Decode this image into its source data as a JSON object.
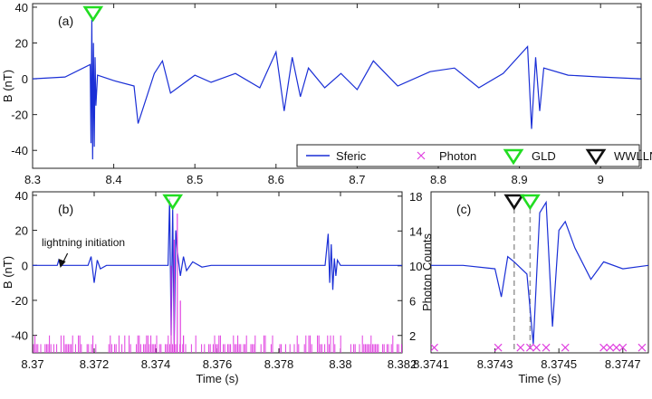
{
  "legend": {
    "items": [
      {
        "label": "Sferic",
        "marker": "line",
        "color": "#1a2fd6"
      },
      {
        "label": "Photon",
        "marker": "x",
        "color": "#e040e0"
      },
      {
        "label": "GLD",
        "marker": "triangle-down",
        "color": "#22dd22"
      },
      {
        "label": "WWLLN",
        "marker": "triangle-down",
        "color": "#111111"
      }
    ],
    "placement": "bottom-right of panel (a)"
  },
  "colors": {
    "sferic": "#1a2fd6",
    "photon": "#e040e0",
    "gld": "#22dd22",
    "wwlln": "#111111",
    "dashed": "#999999"
  },
  "chart_data": [
    {
      "panel_label": "(a)",
      "type": "line",
      "xlabel": "",
      "ylabel": "B (nT)",
      "xlim": [
        8.3,
        9.05
      ],
      "ylim": [
        -50,
        42
      ],
      "xticks": [
        "8.3",
        "8.4",
        "8.5",
        "8.6",
        "8.7",
        "8.8",
        "8.9",
        "9"
      ],
      "yticks": [
        "40",
        "20",
        "0",
        "-20",
        "-40"
      ],
      "grid": false,
      "series": [
        {
          "name": "Sferic",
          "color": "#1a2fd6",
          "x": [
            8.3,
            8.34,
            8.371,
            8.372,
            8.373,
            8.374,
            8.375,
            8.376,
            8.377,
            8.378,
            8.38,
            8.4,
            8.425,
            8.43,
            8.45,
            8.46,
            8.47,
            8.5,
            8.52,
            8.55,
            8.58,
            8.6,
            8.61,
            8.62,
            8.63,
            8.64,
            8.66,
            8.68,
            8.7,
            8.72,
            8.75,
            8.79,
            8.82,
            8.85,
            8.88,
            8.91,
            8.915,
            8.92,
            8.925,
            8.93,
            8.96,
            9.0,
            9.05
          ],
          "y": [
            0,
            1,
            8,
            -36,
            33,
            -45,
            20,
            -38,
            12,
            -15,
            2,
            -1,
            -4,
            -25,
            3,
            10,
            -8,
            2,
            -2,
            3,
            -5,
            15,
            -18,
            12,
            -10,
            6,
            -5,
            3,
            -6,
            10,
            -4,
            4,
            6,
            -5,
            3,
            18,
            -28,
            12,
            -18,
            6,
            2,
            1,
            0
          ]
        }
      ],
      "annotations": [
        {
          "marker": "GLD",
          "x": 8.3745
        }
      ]
    },
    {
      "panel_label": "(b)",
      "type": "line",
      "xlabel": "Time (s)",
      "ylabel": "B (nT)",
      "ylabel_right": "Photon Counts",
      "xlim": [
        8.37,
        8.382
      ],
      "ylim": [
        -50,
        42
      ],
      "ylim_right": [
        0,
        18.5
      ],
      "xticks": [
        "8.37",
        "8.372",
        "8.374",
        "8.376",
        "8.378",
        "8.38",
        "8.382"
      ],
      "yticks": [
        "40",
        "20",
        "0",
        "-20",
        "-40"
      ],
      "yticks_right": [
        "18",
        "14",
        "10",
        "6",
        "2"
      ],
      "grid": false,
      "series": [
        {
          "name": "Sferic",
          "color": "#1a2fd6",
          "x": [
            8.37,
            8.3708,
            8.37085,
            8.3709,
            8.3718,
            8.3719,
            8.372,
            8.3721,
            8.3722,
            8.3724,
            8.3744,
            8.37445,
            8.3745,
            8.37455,
            8.3746,
            8.37465,
            8.3747,
            8.3748,
            8.3749,
            8.375,
            8.3752,
            8.3755,
            8.3758,
            8.3795,
            8.3796,
            8.37965,
            8.3797,
            8.37975,
            8.3798,
            8.37985,
            8.3799,
            8.38,
            8.382
          ],
          "y": [
            0,
            0,
            3,
            0,
            0,
            5,
            -10,
            3,
            -2,
            0,
            0,
            38,
            -40,
            32,
            -45,
            20,
            8,
            -6,
            5,
            -3,
            2,
            -1,
            0,
            0,
            18,
            -10,
            12,
            -14,
            4,
            -6,
            3,
            0,
            0
          ]
        },
        {
          "name": "Photon",
          "color": "#e040e0",
          "axis": "right",
          "x": [
            8.3745,
            8.3746,
            8.3747,
            8.3748,
            8.3749
          ],
          "y": [
            10,
            13,
            16,
            6,
            2
          ]
        }
      ],
      "annotations": [
        {
          "text": "lightning initiation",
          "x": 8.3709
        },
        {
          "marker": "GLD",
          "x": 8.37455
        }
      ]
    },
    {
      "panel_label": "(c)",
      "type": "line",
      "xlabel": "Time (s)",
      "ylabel": "",
      "xlim": [
        8.3741,
        8.37478
      ],
      "ylim": [
        -50,
        42
      ],
      "xticks": [
        "8.3741",
        "8.3743",
        "8.3745",
        "8.3747"
      ],
      "grid": false,
      "series": [
        {
          "name": "Sferic",
          "color": "#1a2fd6",
          "x": [
            8.3741,
            8.3742,
            8.3743,
            8.37432,
            8.37434,
            8.37436,
            8.3744,
            8.37442,
            8.37444,
            8.37446,
            8.37448,
            8.3745,
            8.37452,
            8.37455,
            8.3746,
            8.37464,
            8.3747,
            8.37478
          ],
          "y": [
            0,
            0,
            -2,
            -18,
            5,
            2,
            -5,
            -45,
            30,
            36,
            -35,
            20,
            25,
            10,
            -8,
            2,
            -2,
            0
          ]
        },
        {
          "name": "Photon",
          "color": "#e040e0",
          "marker": "x",
          "x": [
            8.37411,
            8.37431,
            8.37438,
            8.37441,
            8.37443,
            8.37446,
            8.37452,
            8.37464,
            8.37466,
            8.37468,
            8.3747,
            8.37476
          ],
          "y": [
            -47,
            -47,
            -47,
            -47,
            -47,
            -47,
            -47,
            -47,
            -47,
            -47,
            -47,
            -47
          ]
        }
      ],
      "annotations": [
        {
          "marker": "WWLLN",
          "x": 8.37436
        },
        {
          "marker": "GLD",
          "x": 8.37441
        }
      ]
    }
  ]
}
